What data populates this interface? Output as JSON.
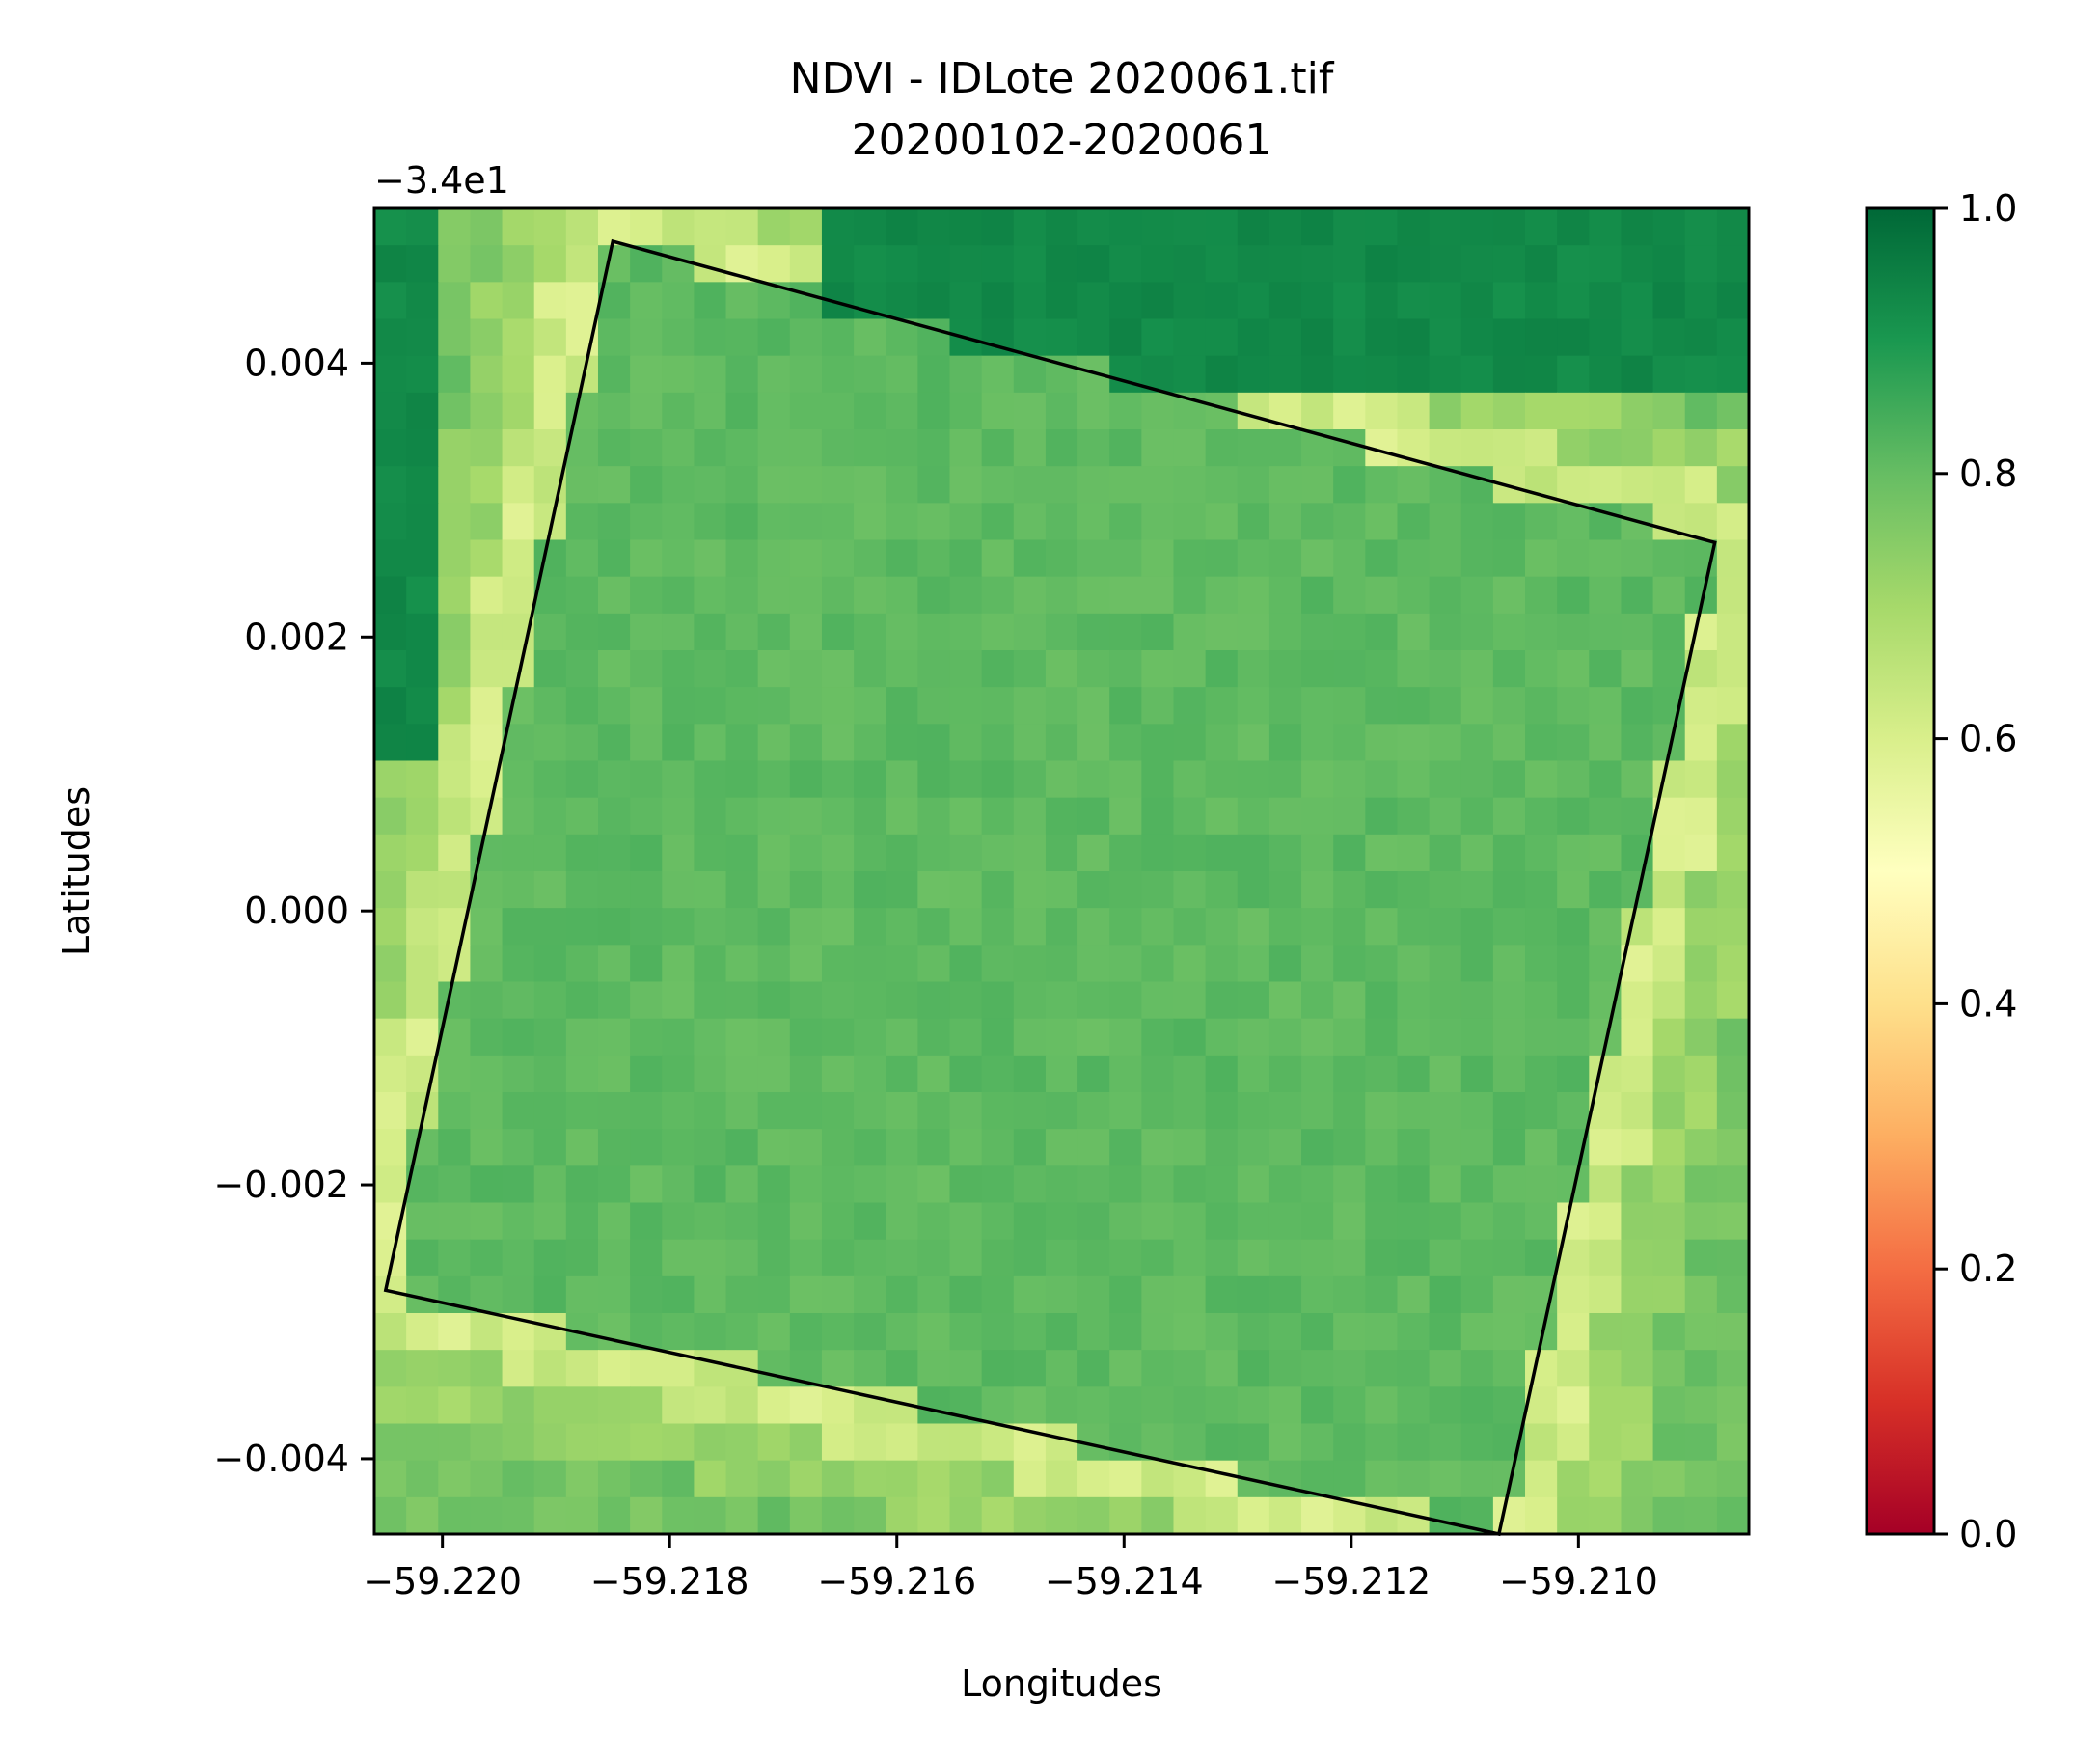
{
  "chart_data": {
    "type": "heatmap",
    "title": "NDVI - IDLote 2020061.tif",
    "subtitle": "20200102-2020061",
    "xlabel": "Longitudes",
    "ylabel": "Latitudes",
    "y_offset_label": "−3.4e1",
    "y_offset": -34,
    "xlim": [
      -59.2206,
      -59.2085
    ],
    "ylim": [
      -0.00455,
      0.00513
    ],
    "x_ticks": [
      -59.22,
      -59.218,
      -59.216,
      -59.214,
      -59.212,
      -59.21
    ],
    "x_tick_labels": [
      "−59.220",
      "−59.218",
      "−59.216",
      "−59.214",
      "−59.212",
      "−59.210"
    ],
    "y_ticks": [
      0.004,
      0.002,
      0.0,
      -0.002,
      -0.004
    ],
    "y_tick_labels": [
      "0.004",
      "0.002",
      "0.000",
      "−0.002",
      "−0.004"
    ],
    "colorbar": {
      "colormap": "RdYlGn",
      "range": [
        0.0,
        1.0
      ],
      "ticks": [
        0.0,
        0.2,
        0.4,
        0.6,
        0.8,
        1.0
      ],
      "tick_labels": [
        "0.0",
        "0.2",
        "0.4",
        "0.6",
        "0.8",
        "1.0"
      ],
      "colors": [
        "#a50026",
        "#d73027",
        "#f46d43",
        "#fdae61",
        "#fee08b",
        "#ffffbf",
        "#d9ef8b",
        "#a6d96a",
        "#66bd63",
        "#1a9850",
        "#006837"
      ]
    },
    "grid_shape": [
      36,
      43
    ],
    "field_value": 0.81,
    "polygon": [
      [
        -59.2185,
        0.00489
      ],
      [
        -59.2088,
        0.00269
      ],
      [
        -59.2107,
        -0.00455
      ],
      [
        -59.2205,
        -0.00277
      ]
    ],
    "grid": false
  }
}
